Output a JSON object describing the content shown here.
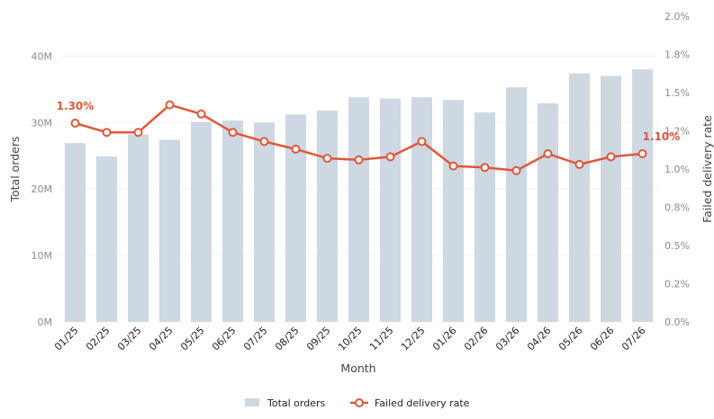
{
  "chart_data": {
    "type": "bar",
    "categories": [
      "01/25",
      "02/25",
      "03/25",
      "04/25",
      "05/25",
      "06/25",
      "07/25",
      "08/25",
      "09/25",
      "10/25",
      "11/25",
      "12/25",
      "01/26",
      "02/26",
      "03/26",
      "04/26",
      "05/26",
      "06/26",
      "07/26"
    ],
    "series": [
      {
        "name": "Total orders",
        "type": "bar",
        "axis": "left",
        "color": "#cdd8e3",
        "values": [
          26900000,
          24900000,
          28200000,
          27400000,
          30100000,
          30300000,
          30000000,
          31200000,
          31800000,
          33800000,
          33600000,
          33800000,
          33400000,
          31500000,
          35300000,
          32900000,
          37400000,
          37000000,
          38000000
        ]
      },
      {
        "name": "Failed delivery rate",
        "type": "line",
        "axis": "right",
        "color": "#e0573a",
        "values": [
          1.3,
          1.24,
          1.24,
          1.42,
          1.36,
          1.24,
          1.18,
          1.13,
          1.07,
          1.06,
          1.08,
          1.18,
          1.02,
          1.01,
          0.99,
          1.1,
          1.03,
          1.08,
          1.1
        ]
      }
    ],
    "xlabel": "Month",
    "ylabel": "Total orders",
    "y2label": "Failed delivery rate",
    "ylim": [
      0,
      46000000
    ],
    "y2lim": [
      0,
      2.0
    ],
    "yticks": [
      0,
      10000000,
      20000000,
      30000000,
      40000000
    ],
    "ytick_labels": [
      "0M",
      "10M",
      "20M",
      "30M",
      "40M"
    ],
    "y2ticks": [
      0,
      0.25,
      0.5,
      0.75,
      1.0,
      1.25,
      1.5,
      1.75,
      2.0
    ],
    "y2tick_labels": [
      "0.0%",
      "0.2%",
      "0.5%",
      "0.8%",
      "1.0%",
      "1.2%",
      "1.5%",
      "1.8%",
      "2.0%"
    ],
    "grid": true,
    "legend_position": "bottom-center",
    "annotations": [
      {
        "text": "1.30%",
        "index": 0,
        "series": "Failed delivery rate"
      },
      {
        "text": "1.10%",
        "index": 18,
        "series": "Failed delivery rate"
      }
    ]
  }
}
